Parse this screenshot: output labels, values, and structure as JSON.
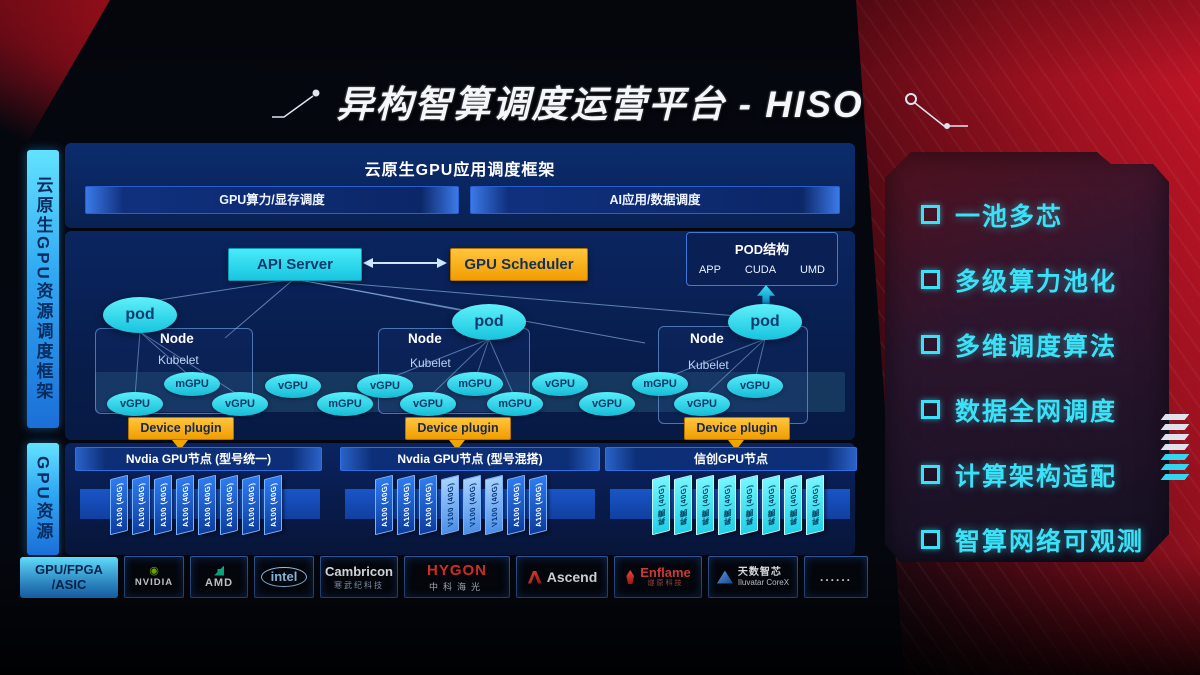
{
  "title": "异构智算调度运营平台 - HISO",
  "colors": {
    "accent_cyan": "#2EE4F4",
    "accent_orange": "#F5A623",
    "panel_blue": "#0A2560",
    "background_red": "#B01222",
    "nvidia_green": "#76B900",
    "hygon_red": "#E8332A",
    "intel_blue": "#9FD4FF"
  },
  "sidebar": {
    "framework_label": "云原生GPU资源调度框架",
    "gpu_label": "GPU资源",
    "accel_line1": "GPU/FPGA",
    "accel_line2": "/ASIC"
  },
  "app_framework": {
    "title": "云原生GPU应用调度框架",
    "left": "GPU算力/显存调度",
    "right": "AI应用/数据调度"
  },
  "scheduler": {
    "api_server": "API Server",
    "gpu_scheduler": "GPU Scheduler"
  },
  "pod_struct": {
    "title": "POD结构",
    "items": [
      "APP",
      "CUDA",
      "UMD"
    ]
  },
  "k8s": {
    "pod_label": "pod",
    "node_label": "Node",
    "kubelet_label": "Kubelet",
    "device_plugin": "Device plugin",
    "gpu_instances": [
      "vGPU",
      "mGPU",
      "vGPU",
      "vGPU",
      "mGPU",
      "vGPU",
      "vGPU",
      "mGPU",
      "mGPU",
      "vGPU",
      "vGPU",
      "mGPU",
      "vGPU",
      "vGPU"
    ]
  },
  "gpu_resources": {
    "groups": [
      {
        "header": "Nvdia GPU节点 (型号统一)",
        "cards": [
          {
            "label": "A100 (40G)",
            "type": "a100"
          },
          {
            "label": "A100 (40G)",
            "type": "a100"
          },
          {
            "label": "A100 (40G)",
            "type": "a100"
          },
          {
            "label": "A100 (40G)",
            "type": "a100"
          },
          {
            "label": "A100 (40G)",
            "type": "a100"
          },
          {
            "label": "A100 (40G)",
            "type": "a100"
          },
          {
            "label": "A100 (40G)",
            "type": "a100"
          },
          {
            "label": "A100 (40G)",
            "type": "a100"
          }
        ]
      },
      {
        "header": "Nvdia GPU节点 (型号混搭)",
        "cards": [
          {
            "label": "A100 (40G)",
            "type": "a100"
          },
          {
            "label": "A100 (40G)",
            "type": "a100"
          },
          {
            "label": "A100 (40G)",
            "type": "a100"
          },
          {
            "label": "V100 (40G)",
            "type": "v100"
          },
          {
            "label": "V100 (40G)",
            "type": "v100"
          },
          {
            "label": "V100 (40G)",
            "type": "v100"
          },
          {
            "label": "A100 (40G)",
            "type": "a100"
          },
          {
            "label": "A100 (40G)",
            "type": "a100"
          }
        ]
      },
      {
        "header": "信创GPU节点",
        "cards": [
          {
            "label": "昇腾 (40G)",
            "type": "cn"
          },
          {
            "label": "昇腾 (40G)",
            "type": "cn"
          },
          {
            "label": "昇腾 (40G)",
            "type": "cn"
          },
          {
            "label": "昇腾 (40G)",
            "type": "cn"
          },
          {
            "label": "昇腾 (40G)",
            "type": "cn"
          },
          {
            "label": "昇腾 (40G)",
            "type": "cn"
          },
          {
            "label": "昇腾 (40G)",
            "type": "cn"
          },
          {
            "label": "昇腾 (40G)",
            "type": "cn"
          }
        ]
      }
    ]
  },
  "vendors": {
    "nvidia": {
      "name": "NVIDIA"
    },
    "amd": {
      "name": "AMD"
    },
    "intel": {
      "name": "intel"
    },
    "cambricon": {
      "name": "Cambricon",
      "sub": "寒武纪科技"
    },
    "hygon": {
      "name": "HYGON",
      "sub": "中科海光"
    },
    "ascend": {
      "name": "Ascend"
    },
    "enflame": {
      "name": "Enflame",
      "sub": "燧原科技"
    },
    "iluvatar": {
      "name": "天数智芯",
      "sub": "Iluvatar CoreX"
    },
    "more": {
      "name": "......"
    }
  },
  "features": {
    "items": [
      "一池多芯",
      "多级算力池化",
      "多维调度算法",
      "数据全网调度",
      "计算架构适配",
      "智算网络可观测"
    ]
  }
}
